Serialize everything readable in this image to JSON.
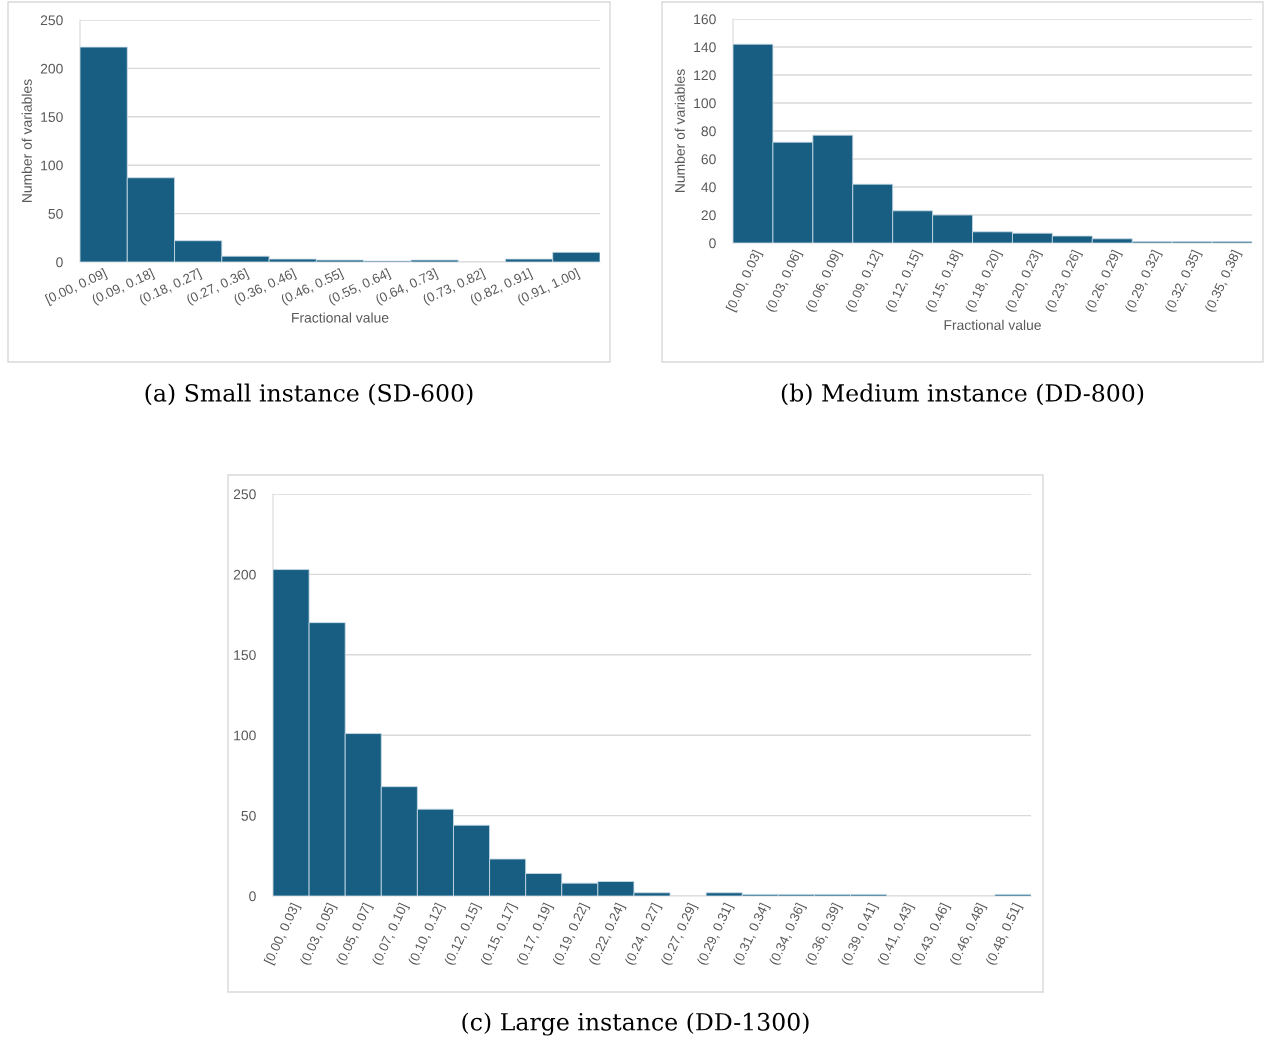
{
  "chart_data": [
    {
      "type": "bar",
      "title": "(a) Small instance (SD-600)",
      "xlabel": "Fractional value",
      "ylabel": "Number of variables",
      "categories": [
        "[0.00, 0.09]",
        "(0.09, 0.18]",
        "(0.18, 0.27]",
        "(0.27, 0.36]",
        "(0.36, 0.46]",
        "(0.46, 0.55]",
        "(0.55, 0.64]",
        "(0.64, 0.73]",
        "(0.73, 0.82]",
        "(0.82, 0.91]",
        "(0.91, 1.00]"
      ],
      "values": [
        222,
        87,
        22,
        6,
        3,
        2,
        1,
        2,
        0,
        3,
        10
      ],
      "color": "#175e82",
      "ylim": [
        0,
        250
      ],
      "yticks": [
        0,
        50,
        100,
        150,
        200,
        250
      ],
      "grid": "y",
      "legend": false
    },
    {
      "type": "bar",
      "title": "(b) Medium instance (DD-800)",
      "xlabel": "Fractional value",
      "ylabel": "Number of variables",
      "categories": [
        "[0.00, 0.03]",
        "(0.03, 0.06]",
        "(0.06, 0.09]",
        "(0.09, 0.12]",
        "(0.12, 0.15]",
        "(0.15, 0.18]",
        "(0.18, 0.20]",
        "(0.20, 0.23]",
        "(0.23, 0.26]",
        "(0.26, 0.29]",
        "(0.29, 0.32]",
        "(0.32, 0.35]",
        "(0.35, 0.38]"
      ],
      "values": [
        142,
        72,
        77,
        42,
        23,
        20,
        8,
        7,
        5,
        3,
        1,
        1,
        1
      ],
      "color": "#175e82",
      "ylim": [
        0,
        160
      ],
      "yticks": [
        0,
        20,
        40,
        60,
        80,
        100,
        120,
        140,
        160
      ],
      "grid": "y",
      "legend": false
    },
    {
      "type": "bar",
      "title": "(c) Large instance (DD-1300)",
      "categories": [
        "[0.00, 0.03]",
        "(0.03, 0.05]",
        "(0.05, 0.07]",
        "(0.07, 0.10]",
        "(0.10, 0.12]",
        "(0.12, 0.15]",
        "(0.15, 0.17]",
        "(0.17, 0.19]",
        "(0.19, 0.22]",
        "(0.22, 0.24]",
        "(0.24, 0.27]",
        "(0.27, 0.29]",
        "(0.29, 0.31]",
        "(0.31, 0.34]",
        "(0.34, 0.36]",
        "(0.36, 0.39]",
        "(0.39, 0.41]",
        "(0.41, 0.43]",
        "(0.43, 0.46]",
        "(0.46, 0.48]",
        "(0.48, 0.51]"
      ],
      "values": [
        203,
        170,
        101,
        68,
        54,
        44,
        23,
        14,
        8,
        9,
        2,
        0,
        2,
        1,
        1,
        1,
        1,
        0,
        0,
        0,
        1
      ],
      "color": "#175e82",
      "ylim": [
        0,
        250
      ],
      "yticks": [
        0,
        50,
        100,
        150,
        200,
        250
      ],
      "grid": "y",
      "legend": false
    }
  ]
}
